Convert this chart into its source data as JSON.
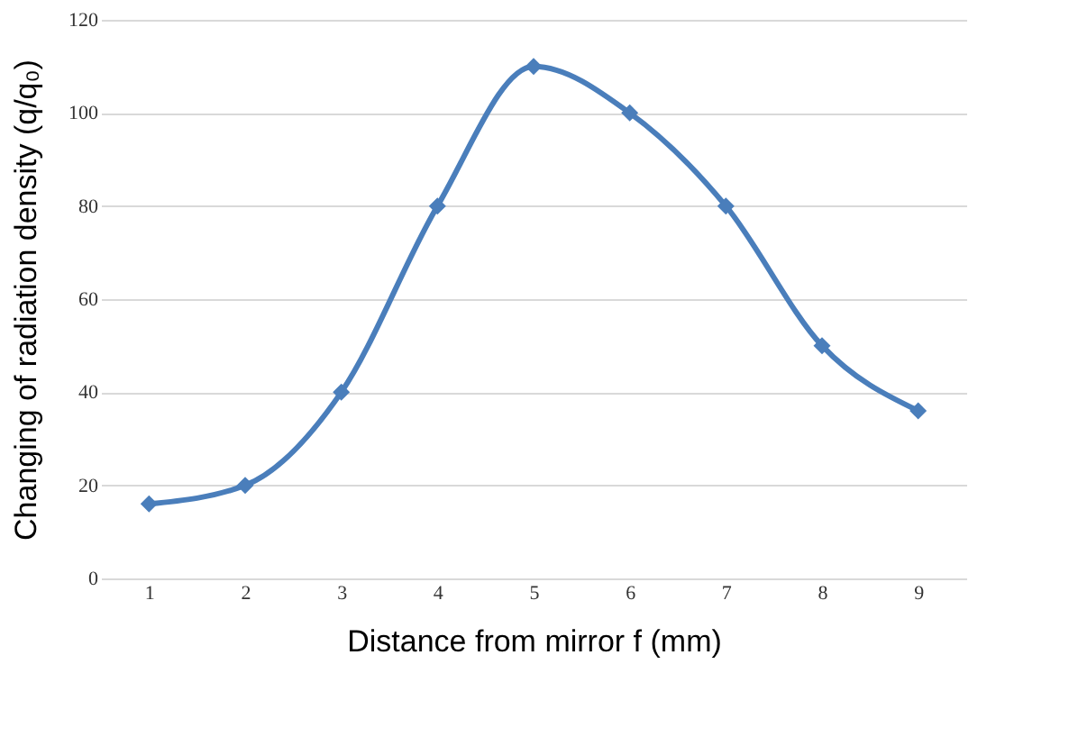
{
  "chart_data": {
    "type": "line",
    "xlabel": "Distance from mirror f (mm)",
    "ylabel": "Changing of radiation density  (q/q₀)",
    "categories": [
      "1",
      "2",
      "3",
      "4",
      "5",
      "6",
      "7",
      "8",
      "9"
    ],
    "series": [
      {
        "color": "#4a7ebb",
        "values": [
          16,
          20,
          40,
          80,
          110,
          100,
          80,
          50,
          36
        ]
      }
    ],
    "ylim": [
      0,
      120
    ],
    "yticks": [
      0,
      20,
      40,
      60,
      80,
      100,
      120
    ],
    "grid": "y",
    "marker": "diamond",
    "line_style": "solid"
  }
}
